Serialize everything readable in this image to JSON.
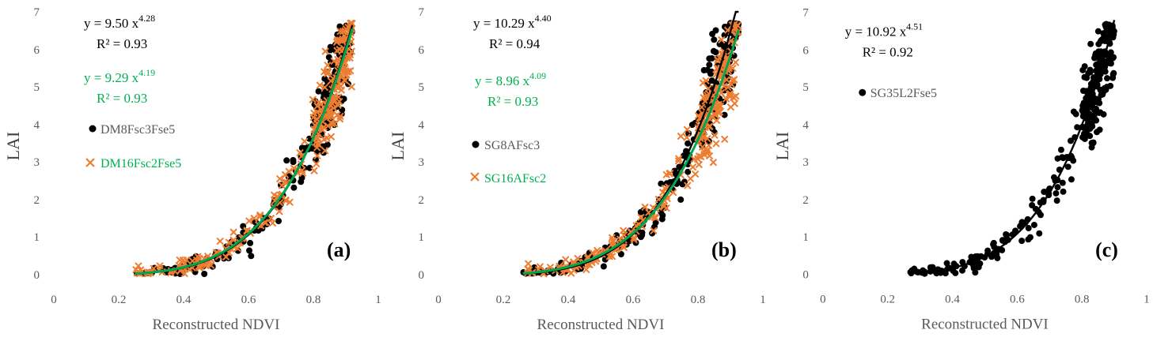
{
  "colors": {
    "black_series": "#000000",
    "orange_series": "#ED7D31",
    "green_text": "#00B050",
    "green_fit": "#00A651",
    "legend_gray_text": "#595959",
    "axis_text": "#595959"
  },
  "chart_data": [
    {
      "type": "scatter",
      "panel_label": "(a)",
      "xlabel": "Reconstructed NDVI",
      "ylabel": "LAI",
      "xlim": [
        0,
        1
      ],
      "ylim": [
        0,
        7
      ],
      "xticks": [
        "0",
        "0.2",
        "0.4",
        "0.6",
        "0.8",
        "1"
      ],
      "yticks": [
        "0",
        "1",
        "2",
        "3",
        "4",
        "5",
        "6",
        "7"
      ],
      "series": [
        {
          "name": "DM8Fsc3Fse5",
          "marker": "circle",
          "color": "#000000",
          "fit": {
            "a": 9.5,
            "b": 4.28,
            "equation": "y = 9.50 x",
            "exponent": "4.28",
            "r2_text": "R² = 0.93",
            "line_color": "#000000",
            "x_range": [
              0.25,
              0.92
            ]
          }
        },
        {
          "name": "DM16Fsc2Fse5",
          "marker": "x",
          "color": "#ED7D31",
          "label_color": "#00B050",
          "fit": {
            "a": 9.29,
            "b": 4.19,
            "equation": "y = 9.29 x",
            "exponent": "4.19",
            "r2_text": "R² = 0.93",
            "line_color": "#00A651",
            "x_range": [
              0.25,
              0.92
            ]
          }
        }
      ]
    },
    {
      "type": "scatter",
      "panel_label": "(b)",
      "xlabel": "Reconstructed NDVI",
      "ylabel": "LAI",
      "xlim": [
        0,
        1
      ],
      "ylim": [
        0,
        7
      ],
      "xticks": [
        "0",
        "0.2",
        "0.4",
        "0.6",
        "0.8",
        "1"
      ],
      "yticks": [
        "0",
        "1",
        "2",
        "3",
        "4",
        "5",
        "6",
        "7"
      ],
      "series": [
        {
          "name": "SG8AFsc3",
          "marker": "circle",
          "color": "#000000",
          "fit": {
            "a": 10.29,
            "b": 4.4,
            "equation": "y = 10.29 x",
            "exponent": "4.40",
            "r2_text": "R² = 0.94",
            "line_color": "#000000",
            "x_range": [
              0.26,
              0.925
            ]
          }
        },
        {
          "name": "SG16AFsc2",
          "marker": "x",
          "color": "#ED7D31",
          "label_color": "#00B050",
          "fit": {
            "a": 8.96,
            "b": 4.09,
            "equation": "y = 8.96 x",
            "exponent": "4.09",
            "r2_text": "R² = 0.93",
            "line_color": "#00A651",
            "x_range": [
              0.26,
              0.925
            ]
          }
        }
      ]
    },
    {
      "type": "scatter",
      "panel_label": "(c)",
      "xlabel": "Reconstructed NDVI",
      "ylabel": "LAI",
      "xlim": [
        0,
        1
      ],
      "ylim": [
        0,
        7
      ],
      "xticks": [
        "0",
        "0.2",
        "0.4",
        "0.6",
        "0.8",
        "1"
      ],
      "yticks": [
        "0",
        "1",
        "2",
        "3",
        "4",
        "5",
        "6",
        "7"
      ],
      "series": [
        {
          "name": "SG35L2Fse5",
          "marker": "circle",
          "color": "#000000",
          "fit": {
            "a": 10.92,
            "b": 4.51,
            "equation": "y = 10.92 x",
            "exponent": "4.51",
            "r2_text": "R² = 0.92",
            "line_color": "#000000",
            "x_range": [
              0.27,
              0.9
            ]
          }
        }
      ]
    }
  ]
}
